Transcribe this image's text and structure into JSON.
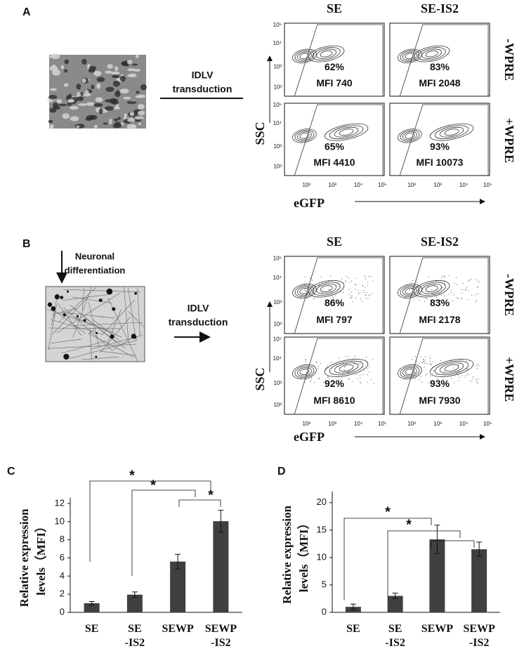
{
  "panel_a": {
    "label": "A",
    "transduction_label": [
      "IDLV",
      "transduction"
    ],
    "columns": [
      "SE",
      "SE-IS2"
    ],
    "rows": [
      "-WPRE",
      "+WPRE"
    ],
    "y_axis": "SSC",
    "x_axis": "eGFP",
    "ticks": [
      "10²",
      "10³",
      "10⁴",
      "10⁵"
    ],
    "plots": [
      {
        "percent": "62%",
        "mfi": "MFI 740"
      },
      {
        "percent": "83%",
        "mfi": "MFI 2048"
      },
      {
        "percent": "65%",
        "mfi": "MFI 4410"
      },
      {
        "percent": "93%",
        "mfi": "MFI 10073"
      }
    ]
  },
  "panel_b": {
    "label": "B",
    "differentiation_label": [
      "Neuronal",
      "differentiation"
    ],
    "transduction_label": [
      "IDLV",
      "transduction"
    ],
    "columns": [
      "SE",
      "SE-IS2"
    ],
    "rows": [
      "-WPRE",
      "+WPRE"
    ],
    "y_axis": "SSC",
    "x_axis": "eGFP",
    "ticks": [
      "10²",
      "10³",
      "10⁴",
      "10⁵"
    ],
    "plots": [
      {
        "percent": "86%",
        "mfi": "MFI 797"
      },
      {
        "percent": "83%",
        "mfi": "MFI 2178"
      },
      {
        "percent": "92%",
        "mfi": "MFI 8610"
      },
      {
        "percent": "93%",
        "mfi": "MFI 7930"
      }
    ]
  },
  "chart_data": [
    {
      "panel_label": "C",
      "type": "bar",
      "y_label": [
        "Relative expression",
        "levels（MFI）"
      ],
      "categories": [
        "SE",
        "SE -IS2",
        "SEWP",
        "SEWP -IS2"
      ],
      "values": [
        1.0,
        1.95,
        5.6,
        10.05
      ],
      "errors": [
        0.2,
        0.3,
        0.8,
        1.2
      ],
      "color": "#404040",
      "ylim": [
        0,
        12
      ],
      "yticks": [
        0,
        2,
        4,
        6,
        8,
        10,
        12
      ],
      "annotations": [
        "*",
        "*",
        "*"
      ]
    },
    {
      "panel_label": "D",
      "type": "bar",
      "y_label": [
        "Relative expression",
        "levels（MFI）"
      ],
      "categories": [
        "SE",
        "SE -IS2",
        "SEWP",
        "SEWP -IS2"
      ],
      "values": [
        1.0,
        3.0,
        13.3,
        11.5
      ],
      "errors": [
        0.5,
        0.5,
        2.6,
        1.3
      ],
      "color": "#404040",
      "ylim": [
        0,
        21
      ],
      "yticks": [
        0,
        5,
        10,
        15,
        20
      ],
      "annotations": [
        "*",
        "*"
      ]
    }
  ]
}
